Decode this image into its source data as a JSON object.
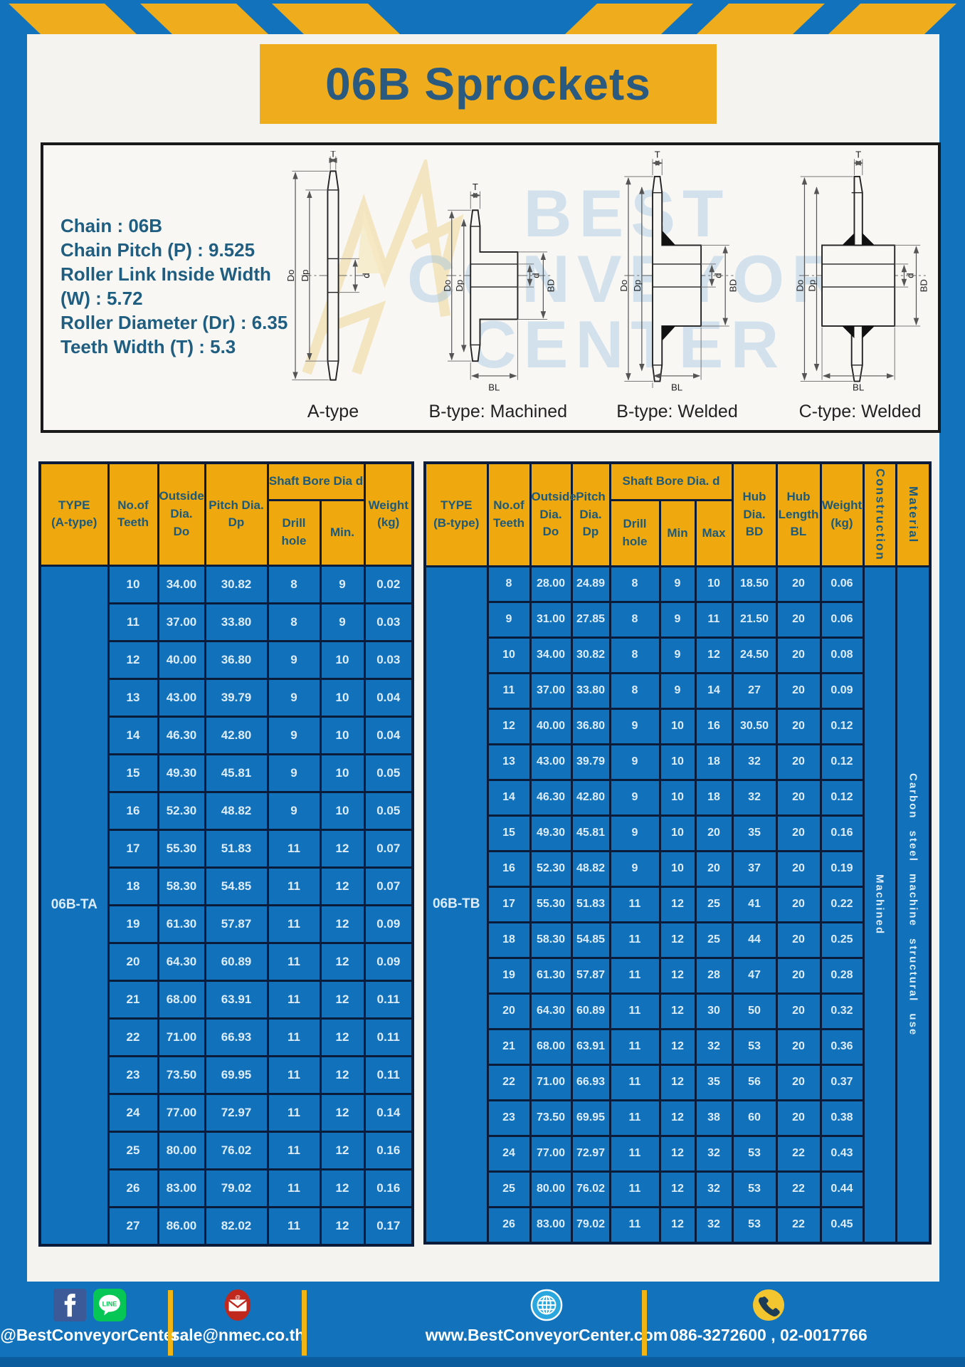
{
  "title": "06B Sprockets",
  "specs": {
    "lines": [
      "Chain  : 06B",
      "Chain Pitch (P)  :  9.525",
      "Roller Link Inside Width (W)  :  5.72",
      "Roller Diameter (Dr)  : 6.35",
      "Teeth Width (T)  :  5.3"
    ]
  },
  "diagrams": {
    "watermark": "BEST CONVEYOR CENTER",
    "captions": [
      "A-type",
      "B-type: Machined",
      "B-type: Welded",
      "C-type: Welded"
    ],
    "dims": {
      "t": "T",
      "do": "Do",
      "dp": "Dp",
      "d": "d",
      "bd": "BD",
      "bl": "BL"
    }
  },
  "tables": {
    "left": {
      "type_label": "06B-TA",
      "headers": {
        "type": "TYPE\n(A-type)",
        "teeth": "No.of\nTeeth",
        "outside": "Outside\nDia.\nDo",
        "pitch": "Pitch Dia.\nDp",
        "bore_group": "Shaft Bore Dia d",
        "drill": "Drill hole",
        "min": "Min.",
        "weight": "Weight\n(kg)"
      },
      "rows": [
        [
          "10",
          "34.00",
          "30.82",
          "8",
          "9",
          "0.02"
        ],
        [
          "11",
          "37.00",
          "33.80",
          "8",
          "9",
          "0.03"
        ],
        [
          "12",
          "40.00",
          "36.80",
          "9",
          "10",
          "0.03"
        ],
        [
          "13",
          "43.00",
          "39.79",
          "9",
          "10",
          "0.04"
        ],
        [
          "14",
          "46.30",
          "42.80",
          "9",
          "10",
          "0.04"
        ],
        [
          "15",
          "49.30",
          "45.81",
          "9",
          "10",
          "0.05"
        ],
        [
          "16",
          "52.30",
          "48.82",
          "9",
          "10",
          "0.05"
        ],
        [
          "17",
          "55.30",
          "51.83",
          "11",
          "12",
          "0.07"
        ],
        [
          "18",
          "58.30",
          "54.85",
          "11",
          "12",
          "0.07"
        ],
        [
          "19",
          "61.30",
          "57.87",
          "11",
          "12",
          "0.09"
        ],
        [
          "20",
          "64.30",
          "60.89",
          "11",
          "12",
          "0.09"
        ],
        [
          "21",
          "68.00",
          "63.91",
          "11",
          "12",
          "0.11"
        ],
        [
          "22",
          "71.00",
          "66.93",
          "11",
          "12",
          "0.11"
        ],
        [
          "23",
          "73.50",
          "69.95",
          "11",
          "12",
          "0.11"
        ],
        [
          "24",
          "77.00",
          "72.97",
          "11",
          "12",
          "0.14"
        ],
        [
          "25",
          "80.00",
          "76.02",
          "11",
          "12",
          "0.16"
        ],
        [
          "26",
          "83.00",
          "79.02",
          "11",
          "12",
          "0.16"
        ],
        [
          "27",
          "86.00",
          "82.02",
          "11",
          "12",
          "0.17"
        ]
      ],
      "span_cols": []
    },
    "right": {
      "type_label": "06B-TB",
      "headers": {
        "type": "TYPE\n(B-type)",
        "teeth": "No.of\nTeeth",
        "outside": "Outside\nDia.\nDo",
        "pitch": "Pitch\nDia.\nDp",
        "bore_group": "Shaft Bore Dia.  d",
        "drill": "Drill hole",
        "min": "Min",
        "max": "Max",
        "hub_dia": "Hub\nDia.\nBD",
        "hub_len": "Hub\nLength\nBL",
        "weight": "Weight\n(kg)",
        "construction": "Construction",
        "material": "Material"
      },
      "rows": [
        [
          "8",
          "28.00",
          "24.89",
          "8",
          "9",
          "10",
          "18.50",
          "20",
          "0.06"
        ],
        [
          "9",
          "31.00",
          "27.85",
          "8",
          "9",
          "11",
          "21.50",
          "20",
          "0.06"
        ],
        [
          "10",
          "34.00",
          "30.82",
          "8",
          "9",
          "12",
          "24.50",
          "20",
          "0.08"
        ],
        [
          "11",
          "37.00",
          "33.80",
          "8",
          "9",
          "14",
          "27",
          "20",
          "0.09"
        ],
        [
          "12",
          "40.00",
          "36.80",
          "9",
          "10",
          "16",
          "30.50",
          "20",
          "0.12"
        ],
        [
          "13",
          "43.00",
          "39.79",
          "9",
          "10",
          "18",
          "32",
          "20",
          "0.12"
        ],
        [
          "14",
          "46.30",
          "42.80",
          "9",
          "10",
          "18",
          "32",
          "20",
          "0.12"
        ],
        [
          "15",
          "49.30",
          "45.81",
          "9",
          "10",
          "20",
          "35",
          "20",
          "0.16"
        ],
        [
          "16",
          "52.30",
          "48.82",
          "9",
          "10",
          "20",
          "37",
          "20",
          "0.19"
        ],
        [
          "17",
          "55.30",
          "51.83",
          "11",
          "12",
          "25",
          "41",
          "20",
          "0.22"
        ],
        [
          "18",
          "58.30",
          "54.85",
          "11",
          "12",
          "25",
          "44",
          "20",
          "0.25"
        ],
        [
          "19",
          "61.30",
          "57.87",
          "11",
          "12",
          "28",
          "47",
          "20",
          "0.28"
        ],
        [
          "20",
          "64.30",
          "60.89",
          "11",
          "12",
          "30",
          "50",
          "20",
          "0.32"
        ],
        [
          "21",
          "68.00",
          "63.91",
          "11",
          "12",
          "32",
          "53",
          "20",
          "0.36"
        ],
        [
          "22",
          "71.00",
          "66.93",
          "11",
          "12",
          "35",
          "56",
          "20",
          "0.37"
        ],
        [
          "23",
          "73.50",
          "69.95",
          "11",
          "12",
          "38",
          "60",
          "20",
          "0.38"
        ],
        [
          "24",
          "77.00",
          "72.97",
          "11",
          "12",
          "32",
          "53",
          "22",
          "0.43"
        ],
        [
          "25",
          "80.00",
          "76.02",
          "11",
          "12",
          "32",
          "53",
          "22",
          "0.44"
        ],
        [
          "26",
          "83.00",
          "79.02",
          "11",
          "12",
          "32",
          "53",
          "22",
          "0.45"
        ]
      ],
      "span_cols": [
        {
          "name": "construction-cell",
          "text": "Machined"
        },
        {
          "name": "material-cell",
          "text": "Carbon  steel  machine  structural  use"
        }
      ]
    }
  },
  "footer": {
    "groups": [
      {
        "label": "@BestConveyorCenter"
      },
      {
        "label": "sale@nmec.co.th"
      },
      {
        "label": "www.BestConveyorCenter.com"
      },
      {
        "label": "086-3272600 , 02-0017766"
      }
    ]
  },
  "colors": {
    "page_blue": "#1273bc",
    "accent_yellow": "#efa90e",
    "table_blue": "#1172bb",
    "border_navy": "#0b1c3a",
    "heading_teal": "#1f5e80"
  }
}
